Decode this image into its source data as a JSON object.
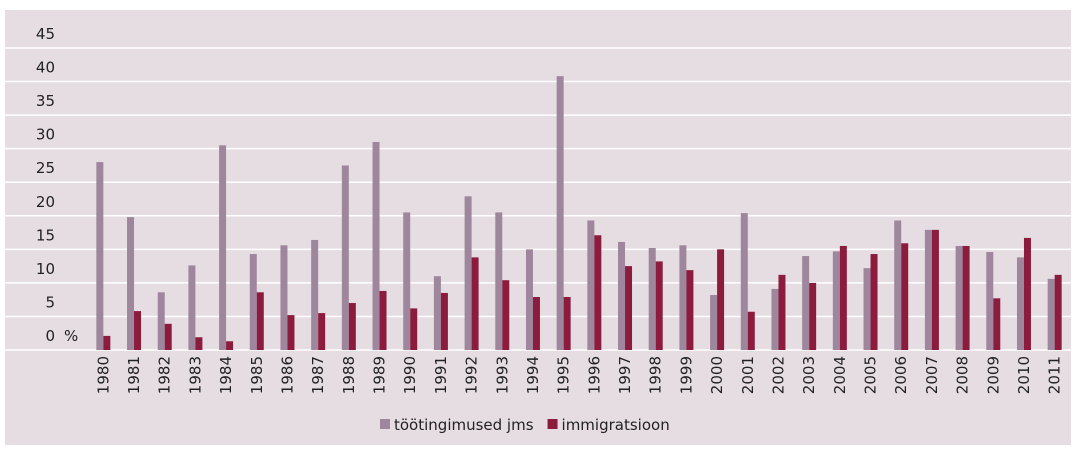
{
  "chart_data": {
    "type": "bar",
    "categories": [
      "1980",
      "1981",
      "1982",
      "1983",
      "1984",
      "1985",
      "1986",
      "1987",
      "1988",
      "1989",
      "1990",
      "1991",
      "1992",
      "1993",
      "1994",
      "1995",
      "1996",
      "1997",
      "1998",
      "1999",
      "2000",
      "2001",
      "2002",
      "2003",
      "2004",
      "2005",
      "2006",
      "2007",
      "2008",
      "2009",
      "2010",
      "2011"
    ],
    "series": [
      {
        "name": "töötingimused jms",
        "color": "#9e869d",
        "values": [
          28,
          19.8,
          8.6,
          12.6,
          30.5,
          14.3,
          15.6,
          16.4,
          27.5,
          31,
          20.5,
          11,
          22.9,
          20.5,
          15,
          40.8,
          19.3,
          16.1,
          15.2,
          15.6,
          8.2,
          20.4,
          9.1,
          14,
          14.7,
          12.2,
          19.3,
          17.9,
          15.5,
          14.6,
          13.8,
          10.6
        ]
      },
      {
        "name": "immigratsioon",
        "color": "#8c1c3e",
        "values": [
          2.1,
          5.8,
          3.9,
          1.9,
          1.3,
          8.6,
          5.2,
          5.5,
          7,
          8.8,
          6.2,
          8.5,
          13.8,
          10.4,
          7.9,
          7.9,
          17.1,
          12.5,
          13.2,
          11.9,
          15,
          5.7,
          11.2,
          10,
          15.5,
          14.3,
          15.9,
          17.9,
          15.5,
          7.7,
          16.7,
          11.2
        ]
      }
    ],
    "y_unit": "%",
    "ylim": [
      0,
      45
    ],
    "yticks": [
      0,
      5,
      10,
      15,
      20,
      25,
      30,
      35,
      40,
      45
    ],
    "grid": true,
    "legend": "bottom"
  }
}
